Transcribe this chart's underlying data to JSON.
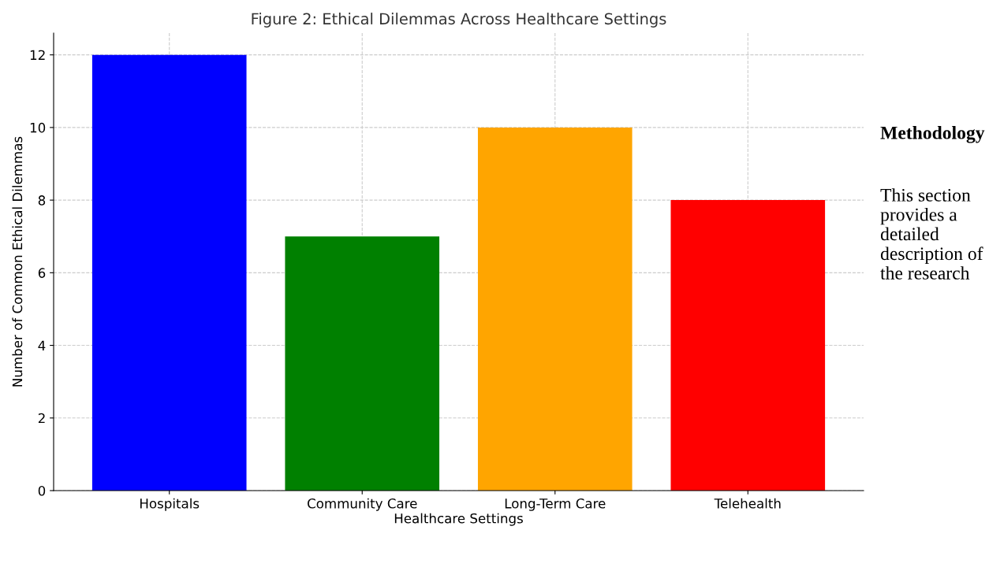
{
  "chart_data": {
    "type": "bar",
    "title": "Figure 2: Ethical Dilemmas Across Healthcare Settings",
    "xlabel": "Healthcare Settings",
    "ylabel": "Number of Common Ethical Dilemmas",
    "categories": [
      "Hospitals",
      "Community Care",
      "Long-Term Care",
      "Telehealth"
    ],
    "values": [
      12,
      7,
      10,
      8
    ],
    "colors": [
      "#0000ff",
      "#008000",
      "#ffa500",
      "#ff0000"
    ],
    "ylim": [
      0,
      12.6
    ],
    "yticks": [
      0,
      2,
      4,
      6,
      8,
      10,
      12
    ],
    "grid": true,
    "annotations": [
      "Methodology",
      "This section provides a detailed description of the research"
    ]
  }
}
